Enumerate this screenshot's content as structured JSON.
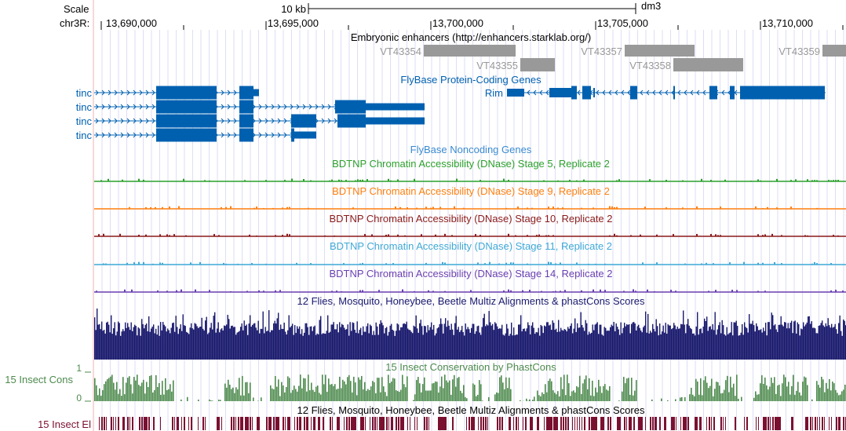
{
  "ruler": {
    "scale_label": "Scale",
    "chrom_label": "chr3R:",
    "scalebar_label": "10 kb",
    "assembly": "dm3",
    "ticks": [
      "13,690,000",
      "13,695,000",
      "13,700,000",
      "13,705,000",
      "13,710,000"
    ]
  },
  "tracks": {
    "enhancers": {
      "title": "Embryonic enhancers (http://enhancers.starklab.org/)",
      "items": [
        "VT43354",
        "VT43355",
        "VT43357",
        "VT43358",
        "VT43359"
      ]
    },
    "genes": {
      "title": "FlyBase Protein-Coding Genes",
      "left_labels": [
        "tinc",
        "tinc",
        "tinc",
        "tinc"
      ],
      "right_label": "Rim"
    },
    "noncoding": {
      "title": "FlyBase Noncoding Genes"
    },
    "dnase": [
      {
        "title": "BDTNP Chromatin Accessibility (DNase) Stage 5, Replicate 2",
        "color": "#2ca02c"
      },
      {
        "title": "BDTNP Chromatin Accessibility (DNase) Stage 9, Replicate 2",
        "color": "#ff7f0e"
      },
      {
        "title": "BDTNP Chromatin Accessibility (DNase) Stage 10, Replicate 2",
        "color": "#8b1a1a"
      },
      {
        "title": "BDTNP Chromatin Accessibility (DNase) Stage 11, Replicate 2",
        "color": "#3fa9d6"
      },
      {
        "title": "BDTNP Chromatin Accessibility (DNase) Stage 14, Replicate 2",
        "color": "#6a3fb0"
      }
    ],
    "multiz": {
      "title": "12 Flies, Mosquito, Honeybee, Beetle Multiz Alignments & phastCons Scores"
    },
    "cons": {
      "title": "15 Insect Conservation by PhastCons",
      "side_label": "15 Insect Cons",
      "axis_max": "1",
      "axis_min": "0"
    },
    "elements": {
      "title": "12 Flies, Mosquito, Honeybee, Beetle Multiz Alignments & phastCons Scores",
      "side_label": "15 Insect El"
    }
  },
  "colors": {
    "gene": "#0060b0",
    "enhancer": "#999999",
    "multiz": "#1a1a6e",
    "cons": "#4d8a4d",
    "elements": "#7a1030",
    "grid": "#c8c8ee",
    "left_border": "#f0b0b0"
  }
}
